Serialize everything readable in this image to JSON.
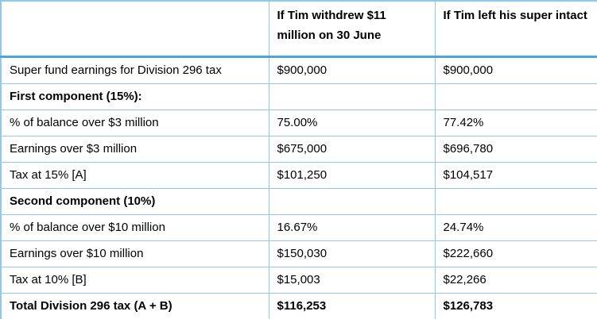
{
  "table": {
    "columns": [
      {
        "label": ""
      },
      {
        "label": "If Tim withdrew $11 million on 30 June"
      },
      {
        "label": "If Tim left his super intact"
      }
    ],
    "rows": [
      {
        "cells": [
          "Super fund earnings for Division 296 tax",
          "$900,000",
          "$900,000"
        ]
      },
      {
        "cells": [
          "First component (15%):",
          "",
          ""
        ]
      },
      {
        "cells": [
          "% of balance over $3 million",
          "75.00%",
          "77.42%"
        ]
      },
      {
        "cells": [
          "Earnings over $3 million",
          "$675,000",
          "$696,780"
        ]
      },
      {
        "cells": [
          "Tax at 15% [A]",
          "$101,250",
          "$104,517"
        ]
      },
      {
        "cells": [
          "Second component (10%)",
          "",
          ""
        ]
      },
      {
        "cells": [
          "% of balance over $10 million",
          "16.67%",
          "24.74%"
        ]
      },
      {
        "cells": [
          "Earnings over $10 million",
          "$150,030",
          "$222,660"
        ]
      },
      {
        "cells": [
          "Tax at 10% [B]",
          "$15,003",
          "$22,266"
        ]
      },
      {
        "cells": [
          "Total Division 296 tax (A + B)",
          "$116,253",
          "$126,783"
        ]
      }
    ],
    "colors": {
      "grid_border": "#8ecbe9",
      "header_separator": "#4ba6da",
      "text": "#000000",
      "background": "#ffffff"
    }
  }
}
